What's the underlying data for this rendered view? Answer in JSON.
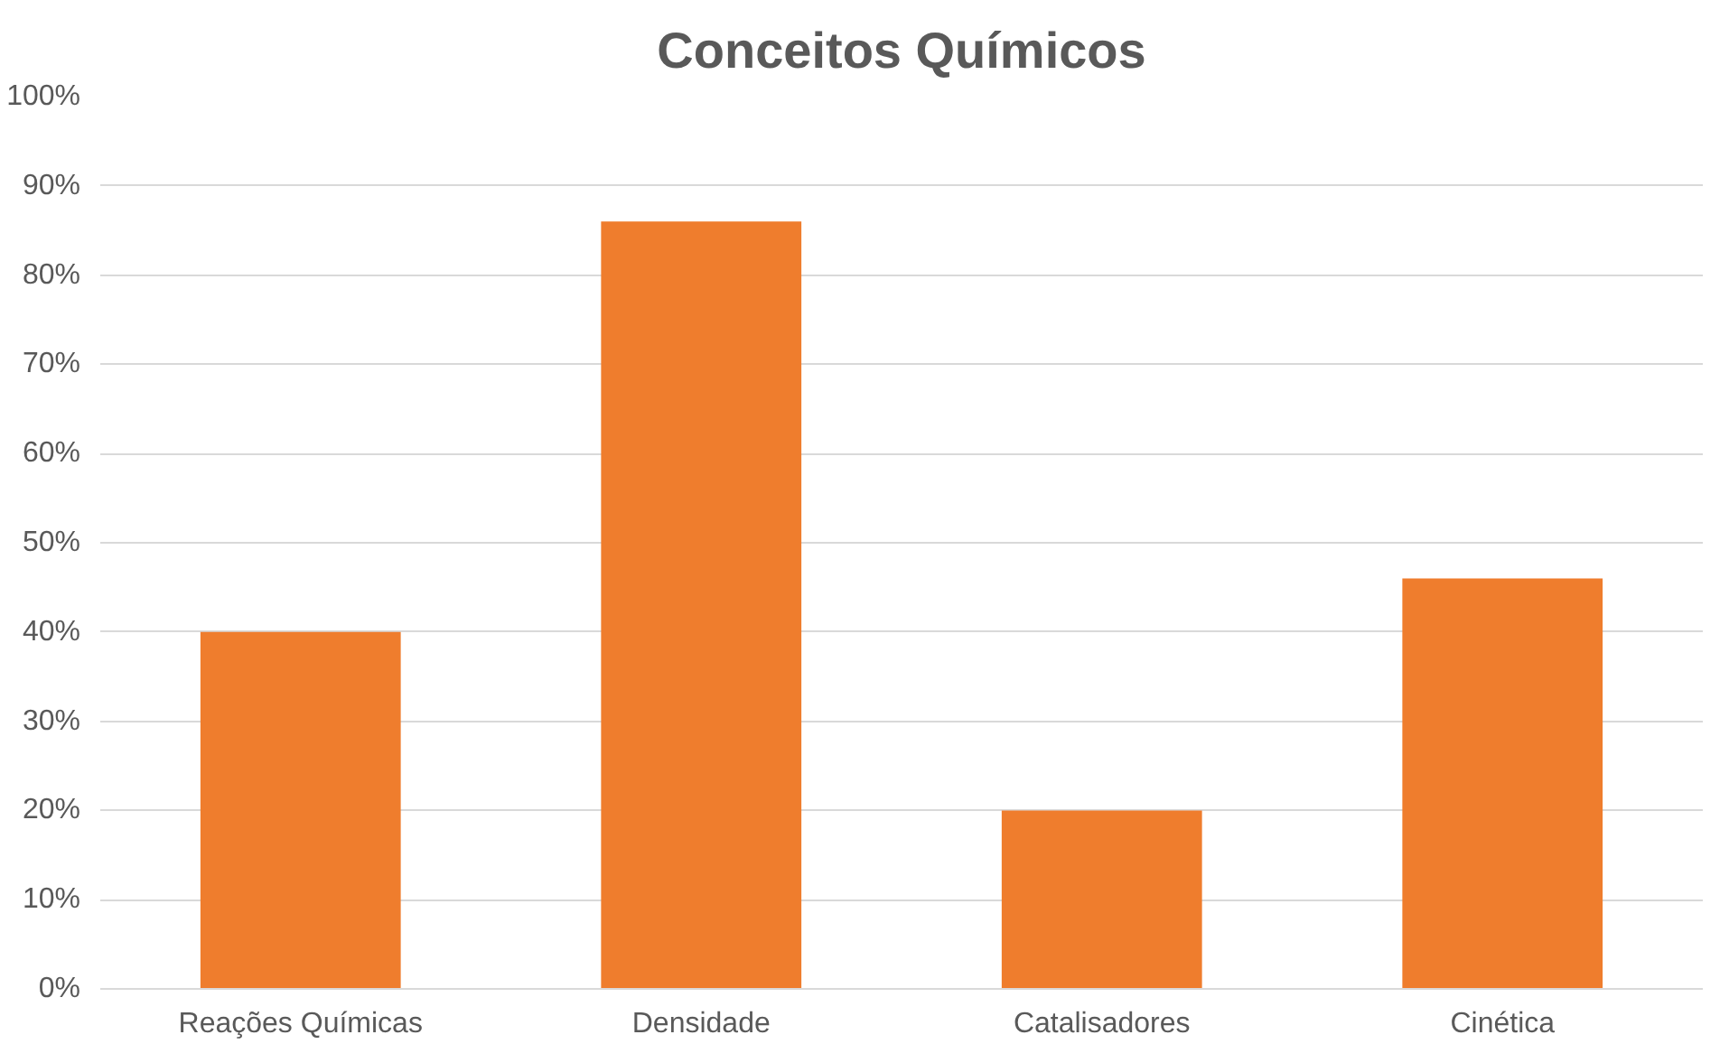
{
  "chart_data": {
    "type": "bar",
    "title": "Conceitos Químicos",
    "categories": [
      "Reações Químicas",
      "Densidade",
      "Catalisadores",
      "Cinética"
    ],
    "values": [
      40,
      86,
      20,
      46
    ],
    "color": "#ef7d2d",
    "ylim": [
      0,
      100
    ],
    "yticks": [
      {
        "value": 0,
        "label": "0%"
      },
      {
        "value": 10,
        "label": "10%"
      },
      {
        "value": 20,
        "label": "20%"
      },
      {
        "value": 30,
        "label": "30%"
      },
      {
        "value": 40,
        "label": "40%"
      },
      {
        "value": 50,
        "label": "50%"
      },
      {
        "value": 60,
        "label": "60%"
      },
      {
        "value": 70,
        "label": "70%"
      },
      {
        "value": 80,
        "label": "80%"
      },
      {
        "value": 90,
        "label": "90%"
      },
      {
        "value": 100,
        "label": "100%"
      }
    ],
    "grid": "y"
  }
}
